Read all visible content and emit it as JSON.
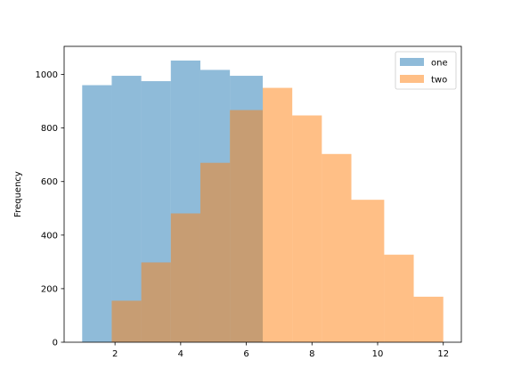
{
  "chart_data": {
    "type": "histogram",
    "title": "",
    "xlabel": "",
    "ylabel": "Frequency",
    "xlim": [
      0.45,
      12.55
    ],
    "ylim": [
      0,
      1105
    ],
    "x_ticks": [
      2,
      4,
      6,
      8,
      10,
      12
    ],
    "y_ticks": [
      0,
      200,
      400,
      600,
      800,
      1000
    ],
    "grid": false,
    "legend": {
      "position": "top-right"
    },
    "series": [
      {
        "name": "one",
        "color": "#1f77b4",
        "alpha": 0.5,
        "bin_edges": [
          1.0,
          1.9,
          2.8,
          3.7,
          4.6,
          5.5,
          6.5
        ],
        "counts": [
          960,
          995,
          975,
          1052,
          1017,
          995
        ]
      },
      {
        "name": "two",
        "color": "#ff7f0e",
        "alpha": 0.5,
        "bin_edges": [
          1.9,
          2.8,
          3.7,
          4.6,
          5.5,
          6.5,
          7.4,
          8.3,
          9.2,
          10.2,
          11.1,
          12.0
        ],
        "counts": [
          155,
          298,
          481,
          670,
          867,
          950,
          847,
          703,
          532,
          327,
          170
        ]
      }
    ]
  }
}
